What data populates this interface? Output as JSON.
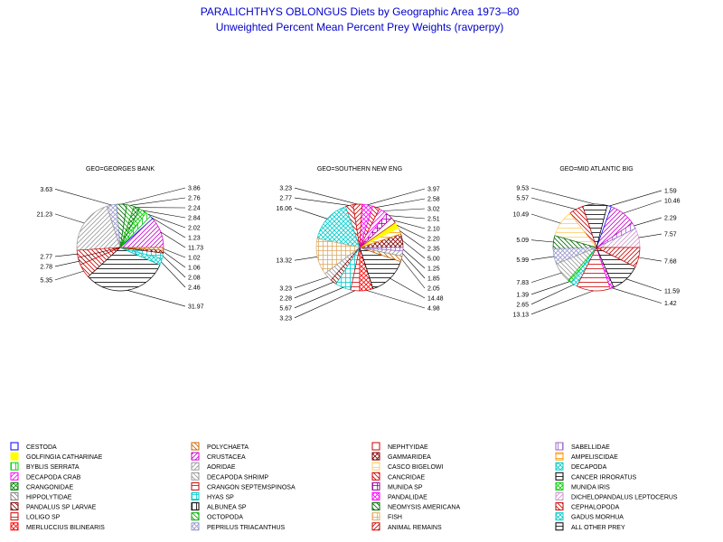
{
  "title": "PARALICHTHYS OBLONGUS Diets by Geographic Area 1973–80",
  "subtitle": "Unweighted Percent Mean Percent Prey  Weights (ravperpy)",
  "colors": {
    "title": "#0000cc",
    "text": "#000000",
    "leader": "#000000"
  },
  "legend": [
    {
      "name": "CESTODA",
      "color": "#0000ff",
      "pattern": "solid-outline"
    },
    {
      "name": "GOLFINGIA CATHARINAE",
      "color": "#ffff00",
      "pattern": "solid"
    },
    {
      "name": "BYBLIS SERRATA",
      "color": "#00cc00",
      "pattern": "vertical"
    },
    {
      "name": "DECAPODA CRAB",
      "color": "#ff00ff",
      "pattern": "fdiag"
    },
    {
      "name": "CRANGONIDAE",
      "color": "#008000",
      "pattern": "cross-diag"
    },
    {
      "name": "HIPPOLYTIDAE",
      "color": "#808080",
      "pattern": "bdiag-sparse"
    },
    {
      "name": "PANDALUS SP LARVAE",
      "color": "#800000",
      "pattern": "bdiag"
    },
    {
      "name": "LOLIGO SP",
      "color": "#cc0000",
      "pattern": "horizontal"
    },
    {
      "name": "MERLUCCIUS BILINEARIS",
      "color": "#ff0000",
      "pattern": "cross-diag"
    },
    {
      "name": "POLYCHAETA",
      "color": "#cc6600",
      "pattern": "bdiag-sparse"
    },
    {
      "name": "CRUSTACEA",
      "color": "#cc00cc",
      "pattern": "fdiag-dense"
    },
    {
      "name": "AORIDAE",
      "color": "#999999",
      "pattern": "fdiag-sparse"
    },
    {
      "name": "DECAPODA SHRIMP",
      "color": "#999999",
      "pattern": "bdiag-sparse"
    },
    {
      "name": "CRANGON SEPTEMSPINOSA",
      "color": "#cc0000",
      "pattern": "horizontal"
    },
    {
      "name": "HYAS SP",
      "color": "#00cccc",
      "pattern": "cross"
    },
    {
      "name": "ALBUNEA SP",
      "color": "#000000",
      "pattern": "vertical"
    },
    {
      "name": "OCTOPODA",
      "color": "#00aa00",
      "pattern": "bdiag"
    },
    {
      "name": "PEPRILUS TRIACANTHUS",
      "color": "#9999cc",
      "pattern": "cross-diag"
    },
    {
      "name": "NEPHTYIDAE",
      "color": "#cc0000",
      "pattern": "solid-outline"
    },
    {
      "name": "GAMMARIDEA",
      "color": "#800000",
      "pattern": "cross-diag"
    },
    {
      "name": "CASCO BIGELOWI",
      "color": "#ffcc66",
      "pattern": "horizontal"
    },
    {
      "name": "CANCRIDAE",
      "color": "#cc0000",
      "pattern": "bdiag"
    },
    {
      "name": "MUNIDA SP",
      "color": "#990099",
      "pattern": "cross"
    },
    {
      "name": "PANDALIDAE",
      "color": "#ff00ff",
      "pattern": "cross-diag"
    },
    {
      "name": "NEOMYSIS AMERICANA",
      "color": "#006600",
      "pattern": "bdiag"
    },
    {
      "name": "FISH",
      "color": "#ddaa66",
      "pattern": "cross"
    },
    {
      "name": "ANIMAL REMAINS",
      "color": "#cc0000",
      "pattern": "fdiag"
    },
    {
      "name": "SABELLIDAE",
      "color": "#9966cc",
      "pattern": "vertical"
    },
    {
      "name": "AMPELISCIDAE",
      "color": "#ff9900",
      "pattern": "horizontal"
    },
    {
      "name": "DECAPODA",
      "color": "#00cccc",
      "pattern": "cross-diag"
    },
    {
      "name": "CANCER IRRORATUS",
      "color": "#000000",
      "pattern": "horizontal"
    },
    {
      "name": "MUNIDA IRIS",
      "color": "#00cc00",
      "pattern": "cross-diag"
    },
    {
      "name": "DICHELOPANDALUS LEPTOCERUS",
      "color": "#cc99cc",
      "pattern": "fdiag-sparse"
    },
    {
      "name": "CEPHALOPODA",
      "color": "#cc0000",
      "pattern": "bdiag"
    },
    {
      "name": "GADUS MORHUA",
      "color": "#00cccc",
      "pattern": "cross-diag"
    },
    {
      "name": "ALL OTHER PREY",
      "color": "#000000",
      "pattern": "horizontal"
    }
  ],
  "chart_data": [
    {
      "type": "pie",
      "title": "GEO=GEORGES BANK",
      "slices": [
        {
          "label": "11.73",
          "value": 11.73,
          "category": "CRUSTACEA"
        },
        {
          "label": "1.23",
          "value": 1.23,
          "category": "CESTODA"
        },
        {
          "label": "2.02",
          "value": 2.02,
          "category": "BYBLIS SERRATA"
        },
        {
          "label": "2.84",
          "value": 2.84,
          "category": "MUNIDA IRIS"
        },
        {
          "label": "2.24",
          "value": 2.24,
          "category": "CRANGONIDAE"
        },
        {
          "label": "2.76",
          "value": 2.76,
          "category": "OCTOPODA"
        },
        {
          "label": "3.86",
          "value": 3.86,
          "category": "NEOMYSIS AMERICANA"
        },
        {
          "label": "3.63",
          "value": 3.63,
          "category": "PEPRILUS TRIACANTHUS"
        },
        {
          "label": "21.23",
          "value": 21.23,
          "category": "AORIDAE"
        },
        {
          "label": "2.77",
          "value": 2.77,
          "category": "CEPHALOPODA"
        },
        {
          "label": "2.78",
          "value": 2.78,
          "category": "PANDALUS SP LARVAE"
        },
        {
          "label": "5.35",
          "value": 5.35,
          "category": "CANCRIDAE"
        },
        {
          "label": "31.97",
          "value": 31.97,
          "category": "ALL OTHER PREY"
        },
        {
          "label": "2.46",
          "value": 2.46,
          "category": "DECAPODA"
        },
        {
          "label": "2.08",
          "value": 2.08,
          "category": "HYAS SP"
        },
        {
          "label": "1.06",
          "value": 1.06,
          "category": "GAMMARIDEA"
        },
        {
          "label": "1.02",
          "value": 1.02,
          "category": "POLYCHAETA"
        }
      ]
    },
    {
      "type": "pie",
      "title": "GEO=SOUTHERN NEW ENG",
      "slices": [
        {
          "label": "5.00",
          "value": 5.0,
          "category": "GAMMARIDEA"
        },
        {
          "label": "2.35",
          "value": 2.35,
          "category": "AMPELISCIDAE"
        },
        {
          "label": "2.20",
          "value": 2.2,
          "category": "GOLFINGIA CATHARINAE"
        },
        {
          "label": "2.10",
          "value": 2.1,
          "category": "NEPHTYIDAE"
        },
        {
          "label": "2.51",
          "value": 2.51,
          "category": "MUNIDA SP"
        },
        {
          "label": "3.02",
          "value": 3.02,
          "category": "DECAPODA CRAB"
        },
        {
          "label": "2.58",
          "value": 2.58,
          "category": "CANCRIDAE"
        },
        {
          "label": "3.97",
          "value": 3.97,
          "category": "PANDALIDAE"
        },
        {
          "label": "3.23",
          "value": 3.23,
          "category": "ANIMAL REMAINS"
        },
        {
          "label": "2.77",
          "value": 2.77,
          "category": "CEPHALOPODA"
        },
        {
          "label": "16.06",
          "value": 16.06,
          "category": "DECAPODA"
        },
        {
          "label": "13.32",
          "value": 13.32,
          "category": "FISH"
        },
        {
          "label": "3.23",
          "value": 3.23,
          "category": "DECAPODA SHRIMP"
        },
        {
          "label": "2.28",
          "value": 2.28,
          "category": "PANDALUS SP LARVAE"
        },
        {
          "label": "5.67",
          "value": 5.67,
          "category": "HYAS SP"
        },
        {
          "label": "3.23",
          "value": 3.23,
          "category": "CRANGON SEPTEMSPINOSA"
        },
        {
          "label": "4.98",
          "value": 4.98,
          "category": "MERLUCCIUS BILINEARIS"
        },
        {
          "label": "14.48",
          "value": 14.48,
          "category": "ALL OTHER PREY"
        },
        {
          "label": "2.05",
          "value": 2.05,
          "category": "POLYCHAETA"
        },
        {
          "label": "1.85",
          "value": 1.85,
          "category": "AORIDAE"
        },
        {
          "label": "1.25",
          "value": 1.25,
          "category": "SABELLIDAE"
        }
      ]
    },
    {
      "type": "pie",
      "title": "GEO=MID ATLANTIC BIG",
      "slices": [
        {
          "label": "7.57",
          "value": 7.57,
          "category": "DICHELOPANDALUS LEPTOCERUS"
        },
        {
          "label": "2.29",
          "value": 2.29,
          "category": "SABELLIDAE"
        },
        {
          "label": "10.46",
          "value": 10.46,
          "category": "CRUSTACEA"
        },
        {
          "label": "1.59",
          "value": 1.59,
          "category": "CESTODA"
        },
        {
          "label": "9.53",
          "value": 9.53,
          "category": "CANCER IRRORATUS"
        },
        {
          "label": "5.57",
          "value": 5.57,
          "category": "CANCRIDAE"
        },
        {
          "label": "10.49",
          "value": 10.49,
          "category": "CASCO BIGELOWI"
        },
        {
          "label": "5.09",
          "value": 5.09,
          "category": "NEOMYSIS AMERICANA"
        },
        {
          "label": "5.99",
          "value": 5.99,
          "category": "PEPRILUS TRIACANTHUS"
        },
        {
          "label": "7.83",
          "value": 7.83,
          "category": "DECAPODA SHRIMP"
        },
        {
          "label": "1.39",
          "value": 1.39,
          "category": "MUNIDA IRIS"
        },
        {
          "label": "2.65",
          "value": 2.65,
          "category": "GADUS MORHUA"
        },
        {
          "label": "13.13",
          "value": 13.13,
          "category": "LOLIGO SP"
        },
        {
          "label": "1.42",
          "value": 1.42,
          "category": "PANDALIDAE"
        },
        {
          "label": "11.59",
          "value": 11.59,
          "category": "ALL OTHER PREY"
        },
        {
          "label": "7.68",
          "value": 7.68,
          "category": "ANIMAL REMAINS"
        }
      ]
    }
  ]
}
